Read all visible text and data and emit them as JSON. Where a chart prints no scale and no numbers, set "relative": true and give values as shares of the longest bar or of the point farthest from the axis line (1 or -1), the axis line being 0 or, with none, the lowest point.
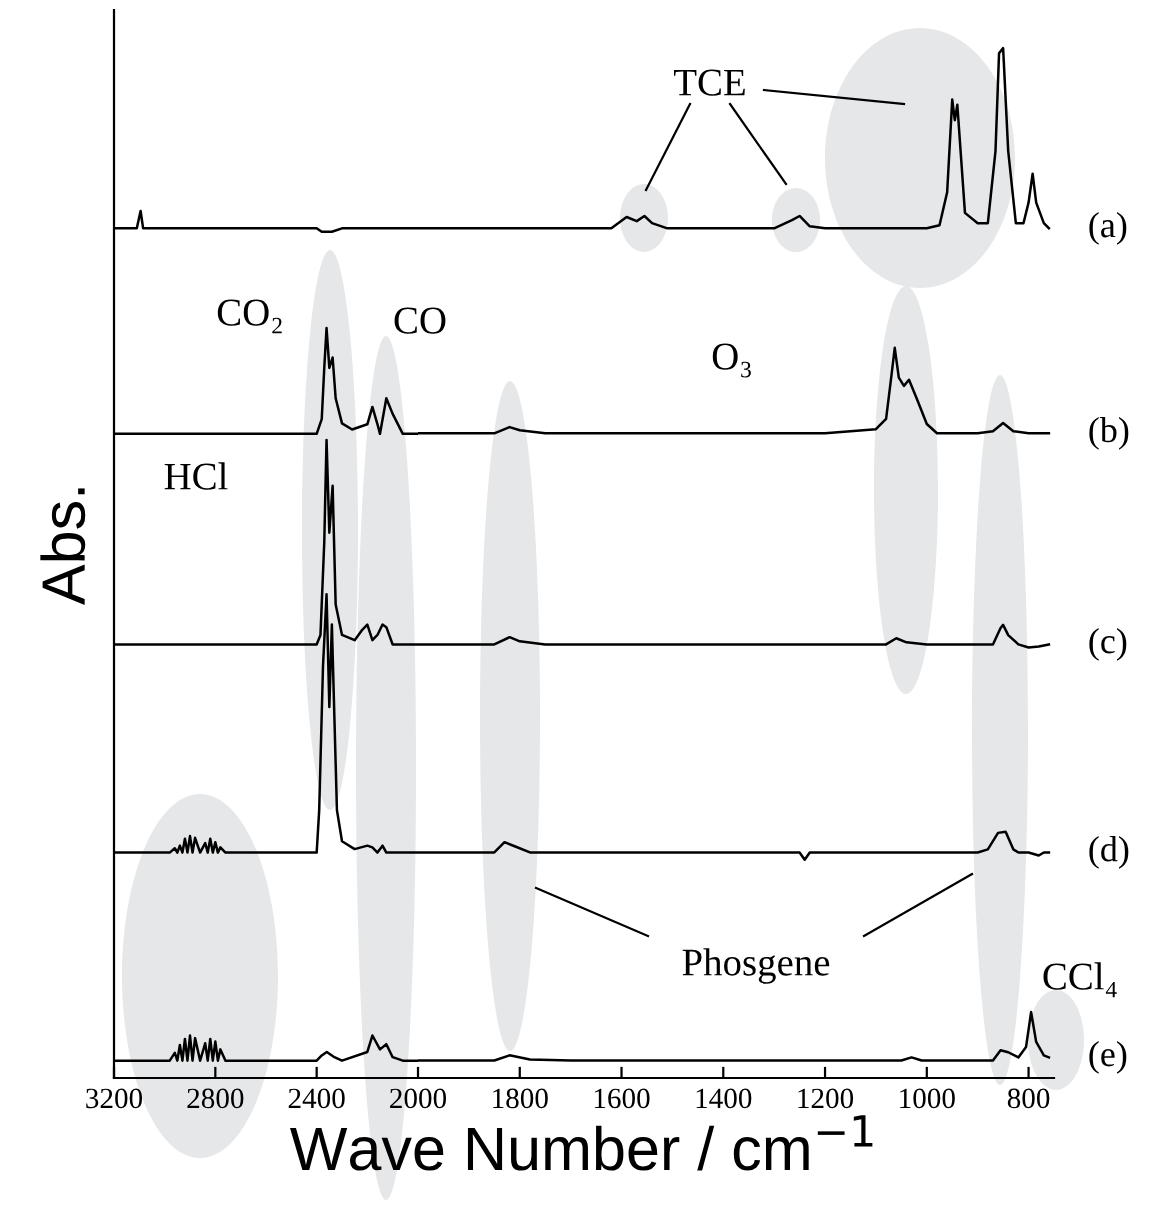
{
  "chart_data": [
    {
      "type": "line",
      "relative": true,
      "ylabel": "Abs.",
      "xlim": [
        3200,
        2000
      ],
      "xticks": [
        3200,
        2800,
        2400
      ],
      "marker": "none",
      "line_style": "solid",
      "series": [
        {
          "color": "#000000",
          "x": [
            3200,
            3110,
            3095,
            3085,
            3000,
            2400,
            2380,
            2340,
            2300,
            2000
          ],
          "values": [
            0.98,
            0.98,
            1.0,
            0.98,
            0.98,
            0.98,
            0.976,
            0.976,
            0.98,
            0.98
          ]
        },
        {
          "color": "#000000",
          "x": [
            3200,
            2400,
            2380,
            2370,
            2361,
            2350,
            2337,
            2325,
            2300,
            2260,
            2200,
            2180,
            2160,
            2150,
            2125,
            2100,
            2060,
            2000
          ],
          "values": [
            0.743,
            0.743,
            0.76,
            0.819,
            0.865,
            0.819,
            0.831,
            0.784,
            0.755,
            0.748,
            0.754,
            0.774,
            0.754,
            0.743,
            0.784,
            0.766,
            0.743,
            0.743
          ]
        },
        {
          "color": "#000000",
          "x": [
            3200,
            2400,
            2385,
            2370,
            2361,
            2350,
            2337,
            2325,
            2300,
            2250,
            2220,
            2200,
            2180,
            2160,
            2140,
            2125,
            2100,
            2050,
            2000
          ],
          "values": [
            0.5,
            0.5,
            0.511,
            0.618,
            0.736,
            0.629,
            0.683,
            0.546,
            0.511,
            0.505,
            0.517,
            0.523,
            0.505,
            0.511,
            0.523,
            0.52,
            0.5,
            0.5,
            0.5
          ]
        },
        {
          "color": "#000000",
          "x": [
            3200,
            2980,
            2960,
            2950,
            2940,
            2930,
            2920,
            2910,
            2900,
            2890,
            2880,
            2860,
            2840,
            2830,
            2820,
            2810,
            2800,
            2790,
            2780,
            2760,
            2700,
            2400,
            2390,
            2375,
            2361,
            2350,
            2340,
            2320,
            2300,
            2250,
            2200,
            2180,
            2160,
            2140,
            2125,
            2100,
            2000
          ],
          "values": [
            0.26,
            0.26,
            0.265,
            0.26,
            0.268,
            0.26,
            0.276,
            0.26,
            0.279,
            0.26,
            0.277,
            0.26,
            0.271,
            0.26,
            0.276,
            0.26,
            0.272,
            0.26,
            0.266,
            0.26,
            0.26,
            0.26,
            0.309,
            0.475,
            0.558,
            0.428,
            0.523,
            0.309,
            0.273,
            0.264,
            0.268,
            0.266,
            0.26,
            0.268,
            0.26,
            0.26,
            0.26
          ]
        },
        {
          "color": "#000000",
          "x": [
            3200,
            2980,
            2960,
            2950,
            2940,
            2930,
            2920,
            2910,
            2900,
            2890,
            2880,
            2860,
            2840,
            2830,
            2820,
            2810,
            2800,
            2790,
            2780,
            2760,
            2400,
            2380,
            2360,
            2330,
            2300,
            2200,
            2180,
            2150,
            2125,
            2100,
            2060,
            2000
          ],
          "values": [
            0.02,
            0.02,
            0.029,
            0.02,
            0.038,
            0.02,
            0.045,
            0.02,
            0.049,
            0.02,
            0.046,
            0.02,
            0.04,
            0.02,
            0.045,
            0.02,
            0.042,
            0.02,
            0.033,
            0.02,
            0.02,
            0.026,
            0.03,
            0.024,
            0.02,
            0.03,
            0.049,
            0.033,
            0.039,
            0.024,
            0.02,
            0.02
          ]
        }
      ],
      "annotations": [
        "CO₂",
        "HCl"
      ]
    },
    {
      "type": "line",
      "relative": true,
      "xlabel": "Wave Number / cm$^{−1}$",
      "xlim": [
        2000,
        750
      ],
      "xticks": [
        2000,
        1800,
        1600,
        1400,
        1200,
        1000,
        800
      ],
      "marker": "none",
      "line_style": "solid",
      "series": [
        {
          "name": "(a)",
          "color": "#000000",
          "x": [
            2000,
            1620,
            1590,
            1570,
            1555,
            1540,
            1510,
            1300,
            1265,
            1250,
            1230,
            1200,
            1000,
            975,
            960,
            950,
            945,
            940,
            925,
            900,
            880,
            865,
            858,
            850,
            840,
            825,
            810,
            800,
            792,
            785,
            770,
            760
          ],
          "values": [
            0.825,
            0.825,
            0.836,
            0.832,
            0.837,
            0.83,
            0.825,
            0.825,
            0.833,
            0.837,
            0.827,
            0.825,
            0.825,
            0.828,
            0.86,
            0.95,
            0.93,
            0.945,
            0.84,
            0.83,
            0.83,
            0.9,
            0.995,
            1.0,
            0.9,
            0.83,
            0.83,
            0.85,
            0.878,
            0.85,
            0.83,
            0.825
          ]
        },
        {
          "name": "(b)",
          "color": "#000000",
          "x": [
            2000,
            1850,
            1820,
            1800,
            1750,
            1500,
            1200,
            1150,
            1100,
            1080,
            1070,
            1063,
            1055,
            1045,
            1035,
            1020,
            1000,
            980,
            900,
            870,
            850,
            830,
            800,
            760
          ],
          "values": [
            0.626,
            0.626,
            0.632,
            0.629,
            0.626,
            0.626,
            0.626,
            0.628,
            0.63,
            0.64,
            0.68,
            0.709,
            0.68,
            0.672,
            0.678,
            0.66,
            0.635,
            0.626,
            0.626,
            0.628,
            0.636,
            0.628,
            0.626,
            0.626
          ]
        },
        {
          "name": "(c)",
          "color": "#000000",
          "x": [
            2000,
            1850,
            1820,
            1800,
            1750,
            1200,
            1080,
            1060,
            1040,
            1000,
            900,
            870,
            855,
            850,
            840,
            820,
            800,
            780,
            760
          ],
          "values": [
            0.421,
            0.421,
            0.428,
            0.424,
            0.421,
            0.421,
            0.421,
            0.427,
            0.423,
            0.421,
            0.421,
            0.421,
            0.437,
            0.44,
            0.43,
            0.421,
            0.418,
            0.419,
            0.421
          ]
        },
        {
          "name": "(d)",
          "color": "#000000",
          "x": [
            2000,
            1850,
            1830,
            1810,
            1780,
            1600,
            1250,
            1240,
            1230,
            900,
            880,
            860,
            845,
            830,
            820,
            800,
            780,
            770,
            760
          ],
          "values": [
            0.219,
            0.219,
            0.229,
            0.225,
            0.219,
            0.219,
            0.219,
            0.212,
            0.219,
            0.219,
            0.222,
            0.238,
            0.239,
            0.222,
            0.219,
            0.219,
            0.216,
            0.219,
            0.219
          ]
        },
        {
          "name": "(e)",
          "color": "#000000",
          "x": [
            2000,
            1850,
            1820,
            1780,
            1700,
            1050,
            1030,
            1010,
            900,
            870,
            855,
            840,
            820,
            805,
            795,
            785,
            770,
            760
          ],
          "values": [
            0.017,
            0.017,
            0.022,
            0.018,
            0.017,
            0.017,
            0.02,
            0.017,
            0.017,
            0.017,
            0.027,
            0.025,
            0.02,
            0.03,
            0.064,
            0.035,
            0.022,
            0.02
          ]
        }
      ],
      "annotations": [
        "TCE",
        "CO",
        "O₃",
        "Phosgene",
        "CCl₄"
      ]
    }
  ]
}
